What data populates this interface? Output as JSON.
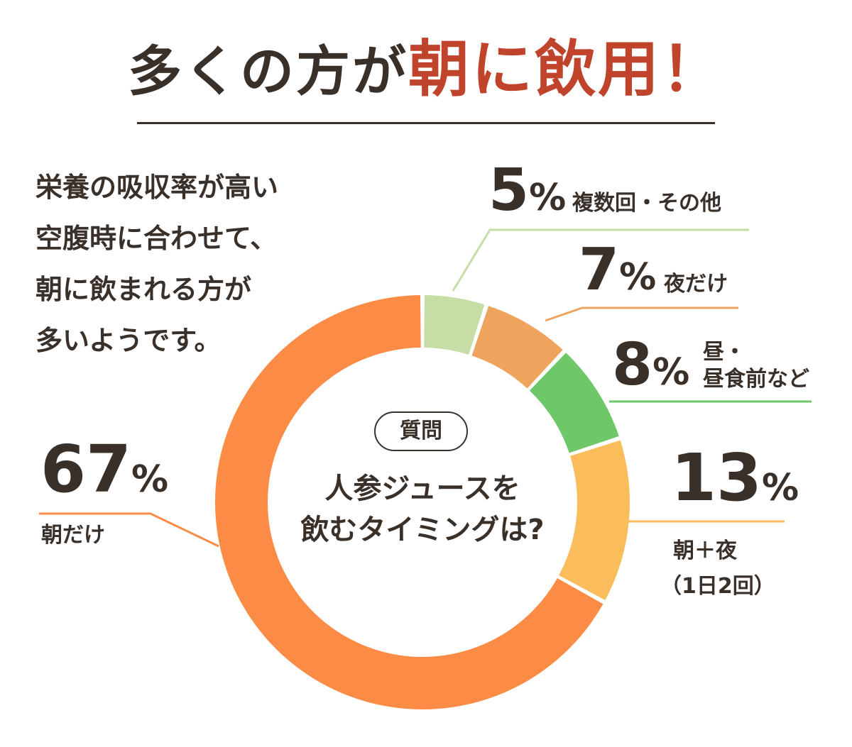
{
  "headline": {
    "prefix": "多くの方が",
    "accent": "朝に飲用！"
  },
  "intro_lines": [
    "栄養の吸収率が高い",
    "空腹時に合わせて、",
    "朝に飲まれる方が",
    "多いようです。"
  ],
  "center": {
    "badge": "質問",
    "line1": "人参ジュースを",
    "line2": "飲むタイミングは?"
  },
  "colors": {
    "accent": "#c0432b",
    "text": "#3a302a"
  },
  "chart_data": {
    "type": "pie",
    "donut": true,
    "unit": "%",
    "slices": [
      {
        "value": 5,
        "label": "複数回・その他",
        "color": "#c6dea6"
      },
      {
        "value": 7,
        "label": "夜だけ",
        "color": "#efa45e"
      },
      {
        "value": 8,
        "label": "昼・昼食前など",
        "color": "#6ec86a"
      },
      {
        "value": 13,
        "label": "朝＋夜（1日2回）",
        "color": "#fbbc5c"
      },
      {
        "value": 67,
        "label": "朝だけ",
        "color": "#fc8c45"
      }
    ],
    "display": {
      "s0_value": "5",
      "s0_label": "複数回・その他",
      "s1_value": "7",
      "s1_label": "夜だけ",
      "s2_value": "8",
      "s2_label_1": "昼・",
      "s2_label_2": "昼食前など",
      "s3_value": "13",
      "s3_label_1": "朝＋夜",
      "s3_label_2": "（1日2回）",
      "s4_value": "67",
      "s4_label": "朝だけ",
      "pct_sign": "%"
    }
  }
}
